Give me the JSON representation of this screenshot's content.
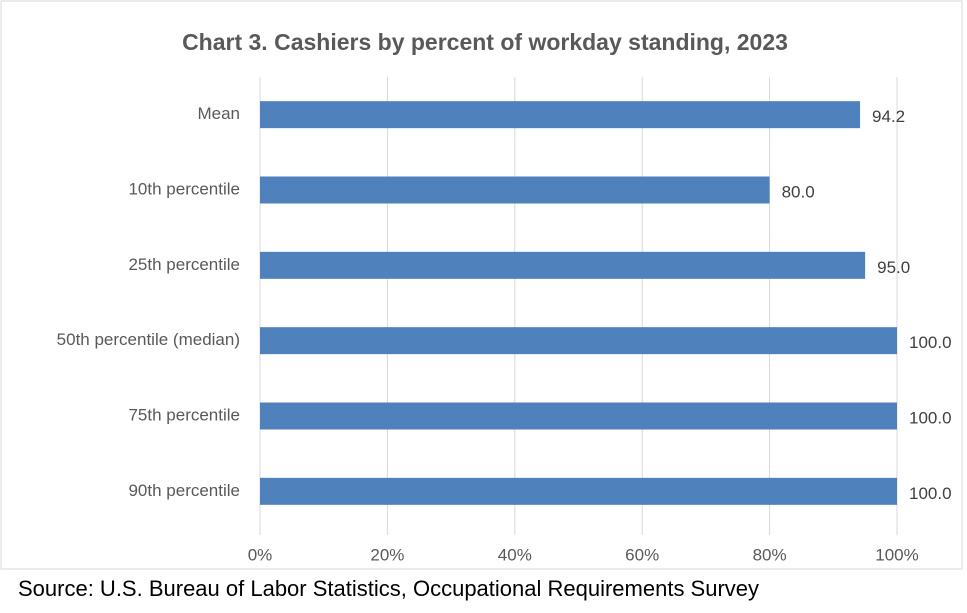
{
  "chart_data": {
    "type": "bar",
    "title": "Chart 3. Cashiers by percent of workday standing, 2023",
    "categories": [
      "Mean",
      "10th percentile",
      "25th percentile",
      "50th percentile (median)",
      "75th percentile",
      "90th percentile"
    ],
    "values": [
      94.2,
      80,
      95,
      100,
      100,
      100
    ],
    "value_labels": [
      "94.2",
      "80.0",
      "95.0",
      "100.0",
      "100.0",
      "100.0"
    ],
    "color": "#4f81bd",
    "xlim": [
      0,
      100
    ],
    "xticks": [
      {
        "value": 0,
        "label": "0%"
      },
      {
        "value": 20,
        "label": "20%"
      },
      {
        "value": 40,
        "label": "40%"
      },
      {
        "value": 60,
        "label": "60%"
      },
      {
        "value": 80,
        "label": "80%"
      },
      {
        "value": 100,
        "label": "100%"
      }
    ],
    "grid": true,
    "source": "Source: U.S. Bureau of Labor Statistics, Occupational Requirements Survey"
  }
}
